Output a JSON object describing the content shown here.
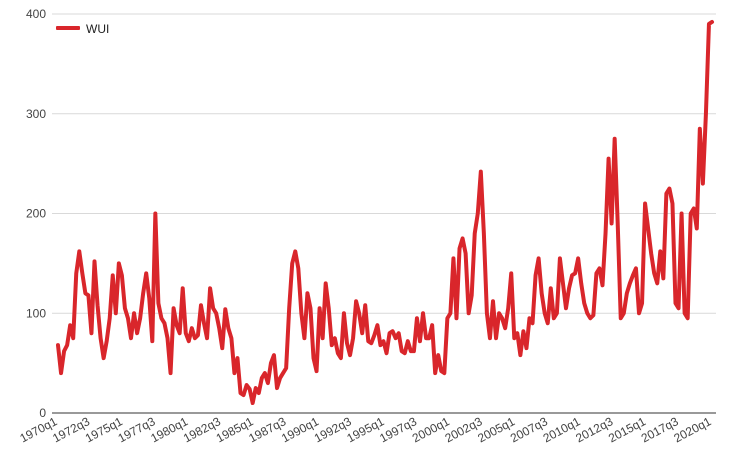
{
  "chart_data": {
    "type": "line",
    "title": "",
    "xlabel": "",
    "ylabel": "",
    "ylim": [
      0,
      400
    ],
    "yticks": [
      "0",
      "100",
      "200",
      "300",
      "400"
    ],
    "grid": true,
    "legend_position": "top-left",
    "x_tick_labels": [
      "1970q1",
      "1972q3",
      "1975q1",
      "1977q3",
      "1980q1",
      "1982q3",
      "1985q1",
      "1987q3",
      "1990q1",
      "1992q3",
      "1995q1",
      "1997q3",
      "2000q1",
      "2002q3",
      "2005q1",
      "2007q3",
      "2010q1",
      "2012q3",
      "2015q1",
      "2017q3",
      "2020q1"
    ],
    "x_start": "1970q1",
    "x_end": "2020q1",
    "series": [
      {
        "name": "WUI",
        "color": "#d9262b",
        "values": [
          68,
          40,
          62,
          68,
          88,
          75,
          140,
          162,
          140,
          120,
          118,
          80,
          152,
          108,
          75,
          55,
          72,
          95,
          138,
          100,
          150,
          138,
          105,
          95,
          75,
          100,
          80,
          95,
          120,
          140,
          115,
          72,
          200,
          110,
          95,
          90,
          75,
          40,
          105,
          88,
          80,
          125,
          80,
          72,
          85,
          75,
          78,
          108,
          90,
          75,
          125,
          105,
          100,
          85,
          65,
          104,
          85,
          75,
          40,
          55,
          20,
          18,
          28,
          24,
          10,
          25,
          20,
          35,
          40,
          30,
          50,
          58,
          25,
          35,
          40,
          45,
          105,
          150,
          162,
          145,
          100,
          75,
          120,
          105,
          55,
          42,
          105,
          75,
          130,
          105,
          68,
          75,
          60,
          55,
          100,
          70,
          58,
          75,
          112,
          100,
          80,
          108,
          72,
          70,
          78,
          88,
          68,
          72,
          60,
          80,
          82,
          75,
          80,
          62,
          60,
          72,
          62,
          62,
          95,
          72,
          100,
          75,
          75,
          88,
          40,
          58,
          42,
          40,
          95,
          100,
          155,
          95,
          165,
          175,
          160,
          100,
          118,
          180,
          200,
          242,
          180,
          100,
          75,
          112,
          75,
          100,
          95,
          85,
          105,
          140,
          75,
          80,
          58,
          82,
          65,
          95,
          90,
          138,
          155,
          120,
          100,
          90,
          125,
          95,
          100,
          155,
          130,
          105,
          125,
          138,
          140,
          155,
          130,
          110,
          100,
          95,
          98,
          140,
          145,
          128,
          180,
          255,
          190,
          275,
          190,
          95,
          100,
          120,
          130,
          138,
          145,
          100,
          110,
          210,
          185,
          160,
          140,
          130,
          162,
          135,
          220,
          225,
          210,
          110,
          105,
          200,
          100,
          95,
          200,
          205,
          185,
          285,
          230,
          300,
          390,
          392
        ]
      }
    ]
  }
}
